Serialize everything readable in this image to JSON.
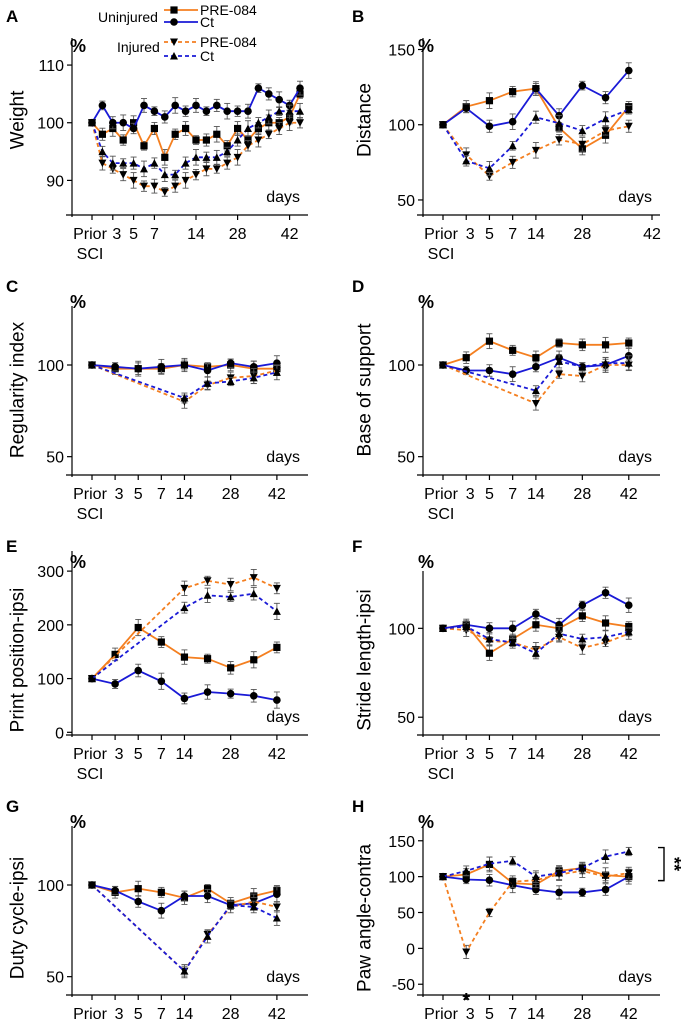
{
  "colors": {
    "pre084": "#f47f20",
    "ct": "#1a1ad6",
    "axis": "#000000",
    "errorbar": "#555555"
  },
  "legend": {
    "uninjured_label": "Uninjured",
    "injured_label": "Injured",
    "pre084_label": "PRE-084",
    "ct_label": "Ct"
  },
  "common": {
    "unit": "%",
    "days_label": "days",
    "prior_label": "Prior",
    "sci_label": "SCI",
    "x_ticks": [
      "3",
      "5",
      "7",
      "14",
      "28",
      "42"
    ]
  },
  "chart_data": [
    {
      "panel": "A",
      "type": "line",
      "ylabel": "Weight",
      "ylim": [
        84,
        114
      ],
      "yticks": [
        90,
        100,
        110
      ],
      "x": [
        0,
        1,
        2,
        3,
        4,
        5,
        6,
        7,
        8,
        9,
        10,
        11,
        12,
        13,
        14,
        15,
        16,
        17,
        18,
        19,
        20
      ],
      "x_tick_positions": [
        0,
        2,
        4,
        6,
        10,
        14,
        19
      ],
      "series": [
        {
          "name": "PRE-084 Uninjured",
          "color": "pre084",
          "dashed": false,
          "marker": "square",
          "values": [
            100,
            98,
            99,
            97,
            100,
            96,
            99,
            94,
            98,
            99,
            97,
            97,
            98,
            96,
            99,
            97,
            99,
            100,
            100,
            101,
            105
          ]
        },
        {
          "name": "Ct Uninjured",
          "color": "ct",
          "dashed": false,
          "marker": "circle",
          "values": [
            100,
            103,
            100,
            100,
            99,
            103,
            102,
            101,
            103,
            102,
            103,
            102,
            103,
            102,
            102,
            102,
            106,
            105,
            104,
            103,
            106
          ]
        },
        {
          "name": "PRE-084 Injured",
          "color": "pre084",
          "dashed": true,
          "marker": "triangle-down",
          "values": [
            100,
            93,
            92,
            91,
            90,
            89,
            89,
            88,
            89,
            90,
            91,
            92,
            92,
            93,
            94,
            96,
            97,
            98,
            99,
            100,
            100
          ]
        },
        {
          "name": "Ct Injured",
          "color": "ct",
          "dashed": true,
          "marker": "triangle-up",
          "values": [
            100,
            95,
            93,
            93,
            93,
            92,
            93,
            91,
            91,
            93,
            94,
            94,
            94,
            95,
            97,
            99,
            100,
            101,
            102,
            102,
            102
          ]
        }
      ]
    },
    {
      "panel": "B",
      "type": "line",
      "ylabel": "Distance",
      "ylim": [
        40,
        155
      ],
      "yticks": [
        50,
        100,
        150
      ],
      "x": [
        0,
        1,
        2,
        3,
        4,
        5,
        6,
        7,
        8,
        9
      ],
      "x_tick_positions": [
        0,
        1,
        2,
        3,
        4,
        6,
        9
      ],
      "series": [
        {
          "name": "PRE-084 Uninjured",
          "color": "pre084",
          "dashed": false,
          "marker": "square",
          "values": [
            100,
            112,
            116,
            122,
            124,
            98,
            84,
            93,
            112,
            null
          ]
        },
        {
          "name": "Ct Uninjured",
          "color": "ct",
          "dashed": false,
          "marker": "circle",
          "values": [
            100,
            111,
            99,
            102,
            124,
            106,
            126,
            118,
            136,
            null
          ]
        },
        {
          "name": "PRE-084 Injured",
          "color": "pre084",
          "dashed": true,
          "marker": "triangle-down",
          "values": [
            100,
            80,
            66,
            75,
            83,
            90,
            87,
            96,
            99,
            null
          ]
        },
        {
          "name": "Ct Injured",
          "color": "ct",
          "dashed": true,
          "marker": "triangle-up",
          "values": [
            100,
            76,
            71,
            86,
            105,
            101,
            96,
            104,
            110,
            null
          ]
        }
      ]
    },
    {
      "panel": "C",
      "type": "line",
      "ylabel": "Regularity index",
      "ylim": [
        40,
        130
      ],
      "yticks": [
        50,
        100
      ],
      "x": [
        0,
        1,
        2,
        3,
        4,
        5,
        6,
        7,
        8,
        9
      ],
      "x_tick_positions": [
        0,
        1,
        2,
        3,
        4,
        6,
        8
      ],
      "series": [
        {
          "name": "PRE-084 Uninjured",
          "color": "pre084",
          "dashed": false,
          "marker": "square",
          "values": [
            100,
            98,
            98,
            98,
            100,
            99,
            100,
            98,
            98,
            null
          ]
        },
        {
          "name": "Ct Uninjured",
          "color": "ct",
          "dashed": false,
          "marker": "circle",
          "values": [
            100,
            99,
            98,
            99,
            100,
            97,
            101,
            99,
            101,
            null
          ]
        },
        {
          "name": "PRE-084 Injured",
          "color": "pre084",
          "dashed": true,
          "marker": "triangle-down",
          "values": [
            100,
            null,
            null,
            null,
            80,
            89,
            93,
            94,
            97,
            null
          ]
        },
        {
          "name": "Ct Injured",
          "color": "ct",
          "dashed": true,
          "marker": "triangle-up",
          "values": [
            100,
            null,
            null,
            null,
            82,
            90,
            91,
            93,
            96,
            null
          ]
        }
      ]
    },
    {
      "panel": "D",
      "type": "line",
      "ylabel": "Base of support",
      "ylim": [
        40,
        130
      ],
      "yticks": [
        50,
        100
      ],
      "x": [
        0,
        1,
        2,
        3,
        4,
        5,
        6,
        7,
        8,
        9
      ],
      "x_tick_positions": [
        0,
        1,
        2,
        3,
        4,
        6,
        8
      ],
      "series": [
        {
          "name": "PRE-084 Uninjured",
          "color": "pre084",
          "dashed": false,
          "marker": "square",
          "values": [
            100,
            104,
            113,
            108,
            104,
            112,
            111,
            111,
            112,
            null
          ]
        },
        {
          "name": "Ct Uninjured",
          "color": "ct",
          "dashed": false,
          "marker": "circle",
          "values": [
            100,
            97,
            97,
            95,
            99,
            104,
            99,
            100,
            105,
            null
          ]
        },
        {
          "name": "PRE-084 Injured",
          "color": "pre084",
          "dashed": true,
          "marker": "triangle-down",
          "values": [
            100,
            null,
            null,
            null,
            79,
            95,
            94,
            100,
            100,
            null
          ]
        },
        {
          "name": "Ct Injured",
          "color": "ct",
          "dashed": true,
          "marker": "triangle-up",
          "values": [
            100,
            null,
            null,
            null,
            86,
            102,
            99,
            101,
            101,
            null
          ]
        }
      ]
    },
    {
      "panel": "E",
      "type": "line",
      "ylabel": "Print position-ipsi",
      "ylim": [
        -5,
        330
      ],
      "yticks": [
        0,
        100,
        200,
        300
      ],
      "x": [
        0,
        1,
        2,
        3,
        4,
        5,
        6,
        7,
        8,
        9
      ],
      "x_tick_positions": [
        0,
        1,
        2,
        3,
        4,
        6,
        8
      ],
      "series": [
        {
          "name": "PRE-084 Uninjured",
          "color": "pre084",
          "dashed": false,
          "marker": "square",
          "values": [
            100,
            145,
            195,
            168,
            140,
            137,
            120,
            135,
            158,
            null
          ]
        },
        {
          "name": "Ct Uninjured",
          "color": "ct",
          "dashed": false,
          "marker": "circle",
          "values": [
            100,
            90,
            115,
            95,
            63,
            75,
            72,
            68,
            60,
            null
          ]
        },
        {
          "name": "PRE-084 Injured",
          "color": "pre084",
          "dashed": true,
          "marker": "triangle-down",
          "values": [
            100,
            null,
            null,
            null,
            268,
            282,
            275,
            288,
            268,
            null
          ]
        },
        {
          "name": "Ct Injured",
          "color": "ct",
          "dashed": true,
          "marker": "triangle-up",
          "values": [
            100,
            null,
            null,
            null,
            232,
            255,
            252,
            258,
            225,
            null
          ]
        }
      ]
    },
    {
      "panel": "F",
      "type": "line",
      "ylabel": "Stride length-ipsi",
      "ylim": [
        40,
        130
      ],
      "yticks": [
        50,
        100
      ],
      "x": [
        0,
        1,
        2,
        3,
        4,
        5,
        6,
        7,
        8,
        9
      ],
      "x_tick_positions": [
        0,
        1,
        2,
        3,
        4,
        6,
        8
      ],
      "series": [
        {
          "name": "PRE-084 Uninjured",
          "color": "pre084",
          "dashed": false,
          "marker": "square",
          "values": [
            100,
            102,
            86,
            94,
            102,
            100,
            107,
            103,
            101,
            null
          ]
        },
        {
          "name": "Ct Uninjured",
          "color": "ct",
          "dashed": false,
          "marker": "circle",
          "values": [
            100,
            102,
            100,
            100,
            108,
            102,
            113,
            120,
            113,
            null
          ]
        },
        {
          "name": "PRE-084 Injured",
          "color": "pre084",
          "dashed": true,
          "marker": "triangle-down",
          "values": [
            100,
            99,
            93,
            92,
            88,
            95,
            89,
            92,
            97,
            null
          ]
        },
        {
          "name": "Ct Injured",
          "color": "ct",
          "dashed": true,
          "marker": "triangle-up",
          "values": [
            100,
            101,
            94,
            92,
            86,
            97,
            94,
            95,
            98,
            null
          ]
        }
      ]
    },
    {
      "panel": "G",
      "type": "line",
      "ylabel": "Duty cycle-ipsi",
      "ylim": [
        40,
        130
      ],
      "yticks": [
        50,
        100
      ],
      "x": [
        0,
        1,
        2,
        3,
        4,
        5,
        6,
        7,
        8,
        9
      ],
      "x_tick_positions": [
        0,
        1,
        2,
        3,
        4,
        6,
        8
      ],
      "series": [
        {
          "name": "PRE-084 Uninjured",
          "color": "pre084",
          "dashed": false,
          "marker": "square",
          "values": [
            100,
            96,
            98,
            96,
            93,
            98,
            90,
            94,
            97,
            null
          ]
        },
        {
          "name": "Ct Uninjured",
          "color": "ct",
          "dashed": false,
          "marker": "circle",
          "values": [
            100,
            97,
            91,
            86,
            94,
            94,
            89,
            90,
            95,
            null
          ]
        },
        {
          "name": "PRE-084 Injured",
          "color": "pre084",
          "dashed": true,
          "marker": "triangle-down",
          "values": [
            100,
            null,
            null,
            null,
            53,
            73,
            88,
            91,
            88,
            null
          ]
        },
        {
          "name": "Ct Injured",
          "color": "ct",
          "dashed": true,
          "marker": "triangle-up",
          "values": [
            100,
            null,
            null,
            null,
            53,
            72,
            89,
            88,
            82,
            null
          ]
        }
      ]
    },
    {
      "panel": "H",
      "type": "line",
      "ylabel": "Paw angle-contra",
      "ylim": [
        -65,
        165
      ],
      "yticks": [
        -50,
        0,
        50,
        100,
        150
      ],
      "x": [
        0,
        1,
        2,
        3,
        4,
        5,
        6,
        7,
        8,
        9
      ],
      "x_tick_positions": [
        0,
        1,
        2,
        3,
        4,
        6,
        8
      ],
      "series": [
        {
          "name": "PRE-084 Uninjured",
          "color": "pre084",
          "dashed": false,
          "marker": "square",
          "values": [
            100,
            103,
            117,
            91,
            89,
            108,
            112,
            102,
            100,
            null
          ]
        },
        {
          "name": "Ct Uninjured",
          "color": "ct",
          "dashed": false,
          "marker": "circle",
          "values": [
            100,
            96,
            95,
            88,
            82,
            78,
            78,
            82,
            100,
            null
          ]
        },
        {
          "name": "PRE-084 Injured",
          "color": "pre084",
          "dashed": true,
          "marker": "triangle-down",
          "values": [
            100,
            -5,
            50,
            93,
            95,
            103,
            108,
            100,
            105,
            null
          ]
        },
        {
          "name": "Ct Injured",
          "color": "ct",
          "dashed": true,
          "marker": "triangle-up",
          "values": [
            100,
            108,
            118,
            122,
            100,
            105,
            112,
            128,
            135,
            null
          ]
        }
      ],
      "significance": {
        "marker_text": "*",
        "at_day_label": "3",
        "right_bracket_text": "**"
      }
    }
  ]
}
